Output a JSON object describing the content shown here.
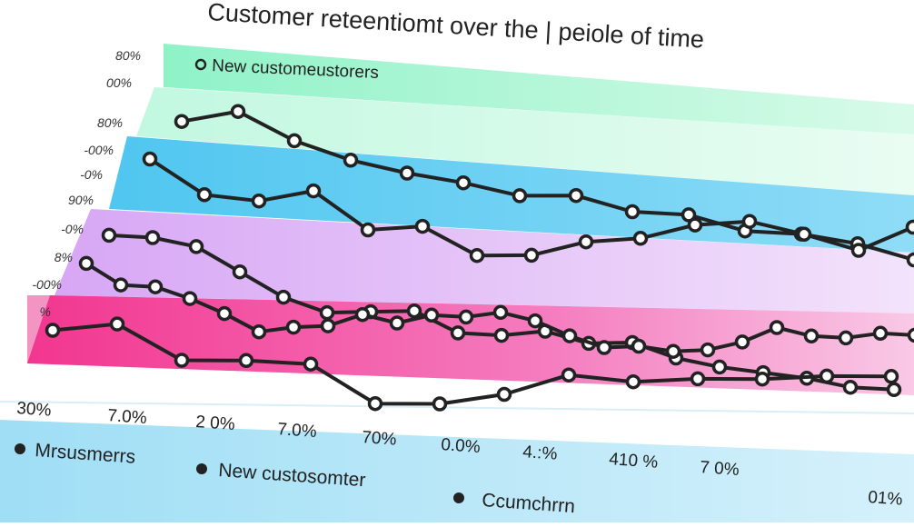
{
  "chart_data": {
    "type": "line",
    "title": "Customer reteentiomt over  the | peiole of time",
    "band_label": "New custome​ustorers",
    "y_tick_labels": [
      "80%",
      "00%",
      "80%",
      "-00%",
      "-0%",
      "90%",
      "-0%",
      "8%",
      "-00%",
      "%"
    ],
    "x_tick_labels": [
      "30%",
      "7.0%",
      "2 0%",
      "7.0%",
      "70%",
      "0.0%",
      "4.:%",
      "410 %",
      "7 0%",
      "01%"
    ],
    "legend": [
      {
        "label": "Mrsusmerrs"
      },
      {
        "label": "New custosomter"
      },
      {
        "label": "Ccumchrrn"
      }
    ],
    "band_colors": [
      "#bff5dc",
      "#5dcdf2",
      "#e8c8f7",
      "#f25fae"
    ],
    "line_color": "#222222",
    "series": [
      {
        "x": [
          0,
          1,
          2,
          3,
          4,
          5,
          6,
          7,
          8,
          9,
          10,
          11,
          12,
          13
        ],
        "values": [
          88,
          92,
          84,
          79,
          76,
          74,
          71,
          72,
          68,
          68,
          64,
          64,
          62,
          58
        ]
      },
      {
        "x": [
          0,
          1,
          2,
          3,
          4,
          5,
          6,
          7,
          8,
          9,
          10,
          11,
          12,
          13,
          14
        ],
        "values": [
          76,
          66,
          65,
          69,
          58,
          60,
          52,
          53,
          58,
          60,
          65,
          67,
          64,
          60,
          68
        ]
      },
      {
        "x": [
          0,
          1,
          2,
          3,
          4,
          5,
          6,
          7,
          8,
          9,
          10,
          11,
          12,
          13,
          14,
          15,
          16,
          17,
          18
        ],
        "values": [
          52,
          52,
          50,
          43,
          36,
          32,
          33,
          34,
          28,
          28,
          30,
          27,
          28,
          24,
          22,
          21,
          20,
          18,
          18
        ]
      },
      {
        "x": [
          0,
          1,
          2,
          3,
          4,
          5,
          6,
          7,
          8,
          9,
          10,
          11,
          12,
          13,
          14,
          15,
          16,
          17,
          18,
          19,
          20,
          21,
          22,
          23,
          24
        ],
        "values": [
          43,
          37,
          37,
          34,
          30,
          25,
          27,
          28,
          32,
          30,
          33,
          33,
          35,
          33,
          29,
          26,
          27,
          26,
          27,
          30,
          35,
          33,
          33,
          35,
          35
        ]
      },
      {
        "x": [
          0,
          1,
          2,
          3,
          4,
          5,
          6,
          7,
          8,
          9,
          10,
          11,
          12,
          13
        ],
        "values": [
          22,
          25,
          15,
          16,
          16,
          5,
          6,
          10,
          17,
          16,
          18,
          19,
          21,
          22
        ]
      }
    ]
  }
}
